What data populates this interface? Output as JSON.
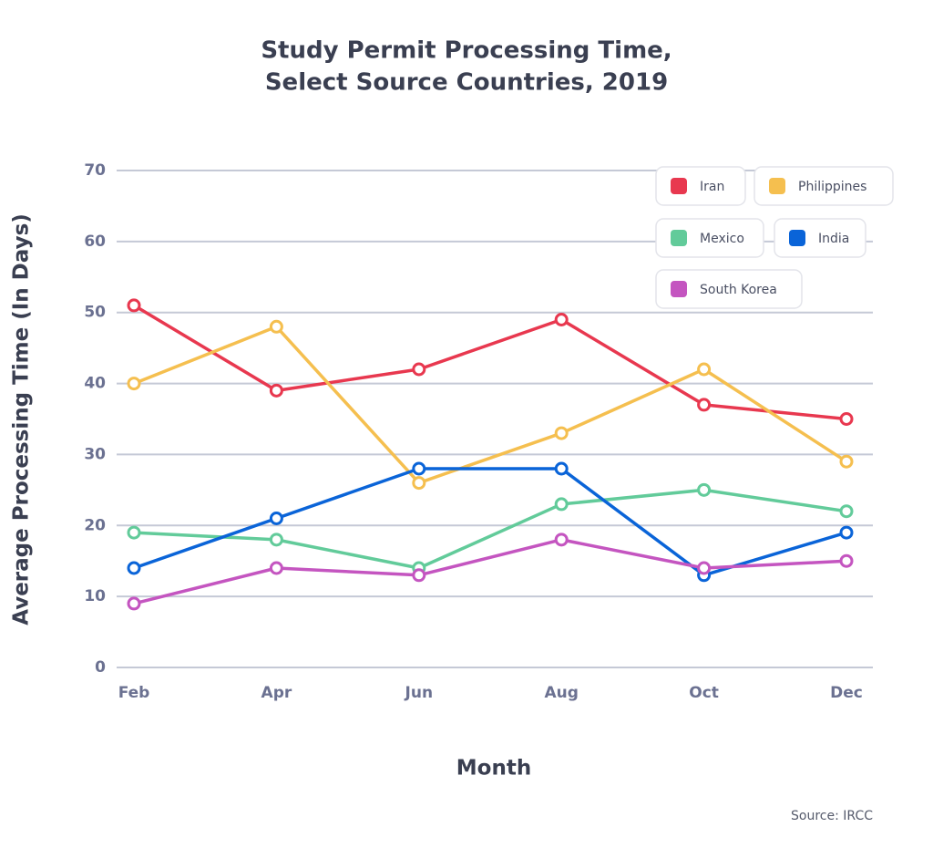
{
  "chart_data": {
    "type": "line",
    "title": [
      "Study Permit Processing Time,",
      "Select Source Countries, 2019"
    ],
    "x_label": "Month",
    "y_label": "Average Processing Time (In Days)",
    "source": "Source: IRCC",
    "categories": [
      "Feb",
      "Apr",
      "Jun",
      "Aug",
      "Oct",
      "Dec"
    ],
    "ylim": [
      0,
      70
    ],
    "yticks": [
      0,
      10,
      20,
      30,
      40,
      50,
      60,
      70
    ],
    "grid": true,
    "legend_position": "upper right",
    "series": [
      {
        "name": "Iran",
        "color": "#e8384f",
        "values": [
          51,
          39,
          42,
          49,
          37,
          35
        ]
      },
      {
        "name": "Philippines",
        "color": "#f5bf4f",
        "values": [
          40,
          48,
          26,
          33,
          42,
          29
        ]
      },
      {
        "name": "Mexico",
        "color": "#62cb9a",
        "values": [
          19,
          18,
          14,
          23,
          25,
          22
        ]
      },
      {
        "name": "India",
        "color": "#0a64d8",
        "values": [
          14,
          21,
          28,
          28,
          13,
          19
        ]
      },
      {
        "name": "South Korea",
        "color": "#c455c0",
        "values": [
          9,
          14,
          13,
          18,
          14,
          15
        ]
      }
    ]
  }
}
